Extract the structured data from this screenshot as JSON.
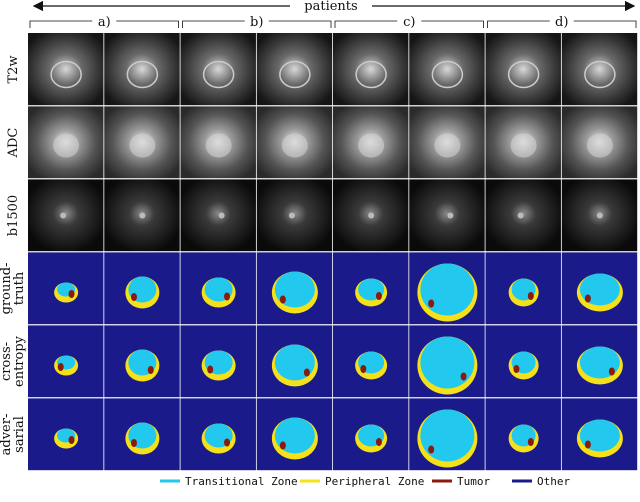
{
  "header": {
    "title": "patients",
    "patients": [
      "a)",
      "b)",
      "c)",
      "d)"
    ]
  },
  "rows": [
    "T2w",
    "ADC",
    "b1500",
    [
      "ground-",
      "truth"
    ],
    [
      "cross-",
      "entropy"
    ],
    [
      "adver-",
      "sarial"
    ]
  ],
  "legend": [
    {
      "name": "Transitional Zone",
      "color": "#22c8ee"
    },
    {
      "name": "Peripheral Zone",
      "color": "#f5e01a"
    },
    {
      "name": "Tumor",
      "color": "#8b1a10"
    },
    {
      "name": "Other",
      "color": "#1a1a8a"
    }
  ]
}
